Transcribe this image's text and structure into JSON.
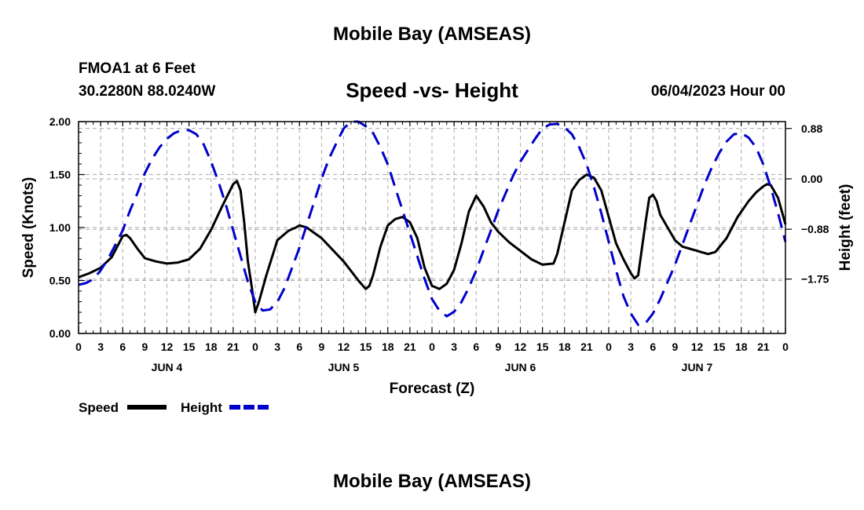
{
  "header": {
    "title": "Mobile Bay (AMSEAS)",
    "station": "FMOA1 at 6 Feet",
    "coordinates": "30.2280N  88.0240W",
    "subtitle": "Speed -vs- Height",
    "datetime": "06/04/2023 Hour 00"
  },
  "footer": {
    "title": "Mobile Bay (AMSEAS)"
  },
  "chart_data": {
    "type": "line",
    "title": "Speed -vs- Height",
    "xlabel": "Forecast (Z)",
    "ylabel": "Speed (Knots)",
    "y2label": "Height (feet)",
    "x_unit": "hours from 06/04/2023 00Z",
    "xlim": [
      0,
      96
    ],
    "ylim": [
      0,
      2.0
    ],
    "y2lim": [
      -2.7,
      1.0
    ],
    "grid": true,
    "x_ticks": [
      0,
      3,
      6,
      9,
      12,
      15,
      18,
      21,
      24,
      27,
      30,
      33,
      36,
      39,
      42,
      45,
      48,
      51,
      54,
      57,
      60,
      63,
      66,
      69,
      72,
      75,
      78,
      81,
      84,
      87,
      90,
      93,
      96
    ],
    "x_tick_labels": [
      "0",
      "3",
      "6",
      "9",
      "12",
      "15",
      "18",
      "21",
      "0",
      "3",
      "6",
      "9",
      "12",
      "15",
      "18",
      "21",
      "0",
      "3",
      "6",
      "9",
      "12",
      "15",
      "18",
      "21",
      "0",
      "3",
      "6",
      "9",
      "12",
      "15",
      "18",
      "21",
      "0"
    ],
    "day_labels": [
      {
        "label": "JUN 4",
        "center_hour": 12
      },
      {
        "label": "JUN 5",
        "center_hour": 36
      },
      {
        "label": "JUN 6",
        "center_hour": 60
      },
      {
        "label": "JUN 7",
        "center_hour": 84
      }
    ],
    "y_ticks": [
      0.0,
      0.5,
      1.0,
      1.5,
      2.0
    ],
    "y_tick_labels": [
      "0.00",
      "0.50",
      "1.00",
      "1.50",
      "2.00"
    ],
    "y2_ticks": [
      0.88,
      0.0,
      -0.88,
      -1.75
    ],
    "y2_tick_labels": [
      "0.88",
      "0.00",
      "−0.88",
      "−1.75"
    ],
    "series": [
      {
        "name": "Speed",
        "color": "#000000",
        "axis": "left",
        "style": "solid",
        "points": [
          [
            0,
            0.53
          ],
          [
            1.5,
            0.57
          ],
          [
            3,
            0.62
          ],
          [
            4.5,
            0.72
          ],
          [
            6,
            0.92
          ],
          [
            6.5,
            0.93
          ],
          [
            7,
            0.9
          ],
          [
            8,
            0.8
          ],
          [
            9,
            0.71
          ],
          [
            10.5,
            0.68
          ],
          [
            12,
            0.66
          ],
          [
            13.5,
            0.67
          ],
          [
            15,
            0.7
          ],
          [
            16.5,
            0.8
          ],
          [
            18,
            0.98
          ],
          [
            19.5,
            1.2
          ],
          [
            21,
            1.41
          ],
          [
            21.5,
            1.44
          ],
          [
            22,
            1.35
          ],
          [
            22.5,
            1.05
          ],
          [
            23,
            0.68
          ],
          [
            23.5,
            0.45
          ],
          [
            24,
            0.2
          ],
          [
            24.5,
            0.3
          ],
          [
            25.5,
            0.55
          ],
          [
            27,
            0.88
          ],
          [
            28.5,
            0.97
          ],
          [
            29.5,
            1.0
          ],
          [
            30,
            1.02
          ],
          [
            31,
            1.0
          ],
          [
            33,
            0.9
          ],
          [
            36,
            0.68
          ],
          [
            38,
            0.5
          ],
          [
            39,
            0.42
          ],
          [
            39.5,
            0.45
          ],
          [
            40,
            0.55
          ],
          [
            41,
            0.82
          ],
          [
            42,
            1.02
          ],
          [
            43,
            1.08
          ],
          [
            44,
            1.1
          ],
          [
            45,
            1.05
          ],
          [
            46,
            0.9
          ],
          [
            47,
            0.62
          ],
          [
            48,
            0.45
          ],
          [
            49,
            0.42
          ],
          [
            50,
            0.47
          ],
          [
            51,
            0.6
          ],
          [
            52,
            0.85
          ],
          [
            53,
            1.15
          ],
          [
            54,
            1.3
          ],
          [
            55,
            1.2
          ],
          [
            56,
            1.05
          ],
          [
            57,
            0.96
          ],
          [
            58.5,
            0.86
          ],
          [
            60,
            0.78
          ],
          [
            61.5,
            0.7
          ],
          [
            63,
            0.65
          ],
          [
            64.5,
            0.66
          ],
          [
            65,
            0.75
          ],
          [
            66,
            1.05
          ],
          [
            67,
            1.35
          ],
          [
            68,
            1.45
          ],
          [
            69,
            1.5
          ],
          [
            70,
            1.47
          ],
          [
            71,
            1.35
          ],
          [
            72,
            1.1
          ],
          [
            73,
            0.85
          ],
          [
            74,
            0.7
          ],
          [
            75,
            0.57
          ],
          [
            75.5,
            0.52
          ],
          [
            76,
            0.55
          ],
          [
            77,
            1.05
          ],
          [
            77.5,
            1.28
          ],
          [
            78,
            1.31
          ],
          [
            78.5,
            1.25
          ],
          [
            79,
            1.12
          ],
          [
            80,
            1.0
          ],
          [
            81,
            0.88
          ],
          [
            82,
            0.82
          ],
          [
            83,
            0.8
          ],
          [
            84,
            0.78
          ],
          [
            85.5,
            0.75
          ],
          [
            86.5,
            0.77
          ],
          [
            88,
            0.9
          ],
          [
            89.5,
            1.1
          ],
          [
            91,
            1.25
          ],
          [
            92,
            1.33
          ],
          [
            93,
            1.39
          ],
          [
            93.5,
            1.41
          ],
          [
            94,
            1.4
          ],
          [
            95,
            1.28
          ],
          [
            96,
            1.03
          ]
        ]
      },
      {
        "name": "Height",
        "color": "#0000cc",
        "axis": "right",
        "style": "dashed",
        "points": [
          [
            0,
            -1.85
          ],
          [
            1,
            -1.82
          ],
          [
            2,
            -1.75
          ],
          [
            3,
            -1.6
          ],
          [
            4,
            -1.4
          ],
          [
            5,
            -1.15
          ],
          [
            6,
            -0.9
          ],
          [
            7,
            -0.55
          ],
          [
            8,
            -0.25
          ],
          [
            9,
            0.1
          ],
          [
            10,
            0.35
          ],
          [
            11,
            0.55
          ],
          [
            12,
            0.7
          ],
          [
            13,
            0.8
          ],
          [
            14,
            0.85
          ],
          [
            15,
            0.85
          ],
          [
            16,
            0.78
          ],
          [
            17,
            0.6
          ],
          [
            18,
            0.3
          ],
          [
            19,
            -0.05
          ],
          [
            20,
            -0.45
          ],
          [
            21,
            -0.9
          ],
          [
            22,
            -1.35
          ],
          [
            23,
            -1.8
          ],
          [
            24,
            -2.15
          ],
          [
            25,
            -2.3
          ],
          [
            26,
            -2.28
          ],
          [
            27,
            -2.15
          ],
          [
            28,
            -1.9
          ],
          [
            29,
            -1.55
          ],
          [
            30,
            -1.2
          ],
          [
            31,
            -0.8
          ],
          [
            32,
            -0.4
          ],
          [
            33,
            0.0
          ],
          [
            34,
            0.35
          ],
          [
            35,
            0.62
          ],
          [
            36,
            0.88
          ],
          [
            37,
            1.0
          ],
          [
            38,
            1.0
          ],
          [
            39,
            0.92
          ],
          [
            40,
            0.8
          ],
          [
            41,
            0.55
          ],
          [
            42,
            0.25
          ],
          [
            43,
            -0.15
          ],
          [
            44,
            -0.55
          ],
          [
            45,
            -0.95
          ],
          [
            46,
            -1.35
          ],
          [
            47,
            -1.75
          ],
          [
            48,
            -2.1
          ],
          [
            49,
            -2.3
          ],
          [
            50,
            -2.4
          ],
          [
            51,
            -2.32
          ],
          [
            52,
            -2.15
          ],
          [
            53,
            -1.9
          ],
          [
            54,
            -1.6
          ],
          [
            55,
            -1.25
          ],
          [
            56,
            -0.9
          ],
          [
            57,
            -0.55
          ],
          [
            58,
            -0.25
          ],
          [
            59,
            0.05
          ],
          [
            60,
            0.3
          ],
          [
            61,
            0.5
          ],
          [
            62,
            0.7
          ],
          [
            63,
            0.88
          ],
          [
            64,
            0.95
          ],
          [
            65,
            0.96
          ],
          [
            66,
            0.9
          ],
          [
            67,
            0.78
          ],
          [
            68,
            0.55
          ],
          [
            69,
            0.25
          ],
          [
            70,
            -0.15
          ],
          [
            71,
            -0.6
          ],
          [
            72,
            -1.1
          ],
          [
            73,
            -1.6
          ],
          [
            74,
            -2.05
          ],
          [
            75,
            -2.35
          ],
          [
            76,
            -2.55
          ],
          [
            77,
            -2.52
          ],
          [
            78,
            -2.35
          ],
          [
            79,
            -2.1
          ],
          [
            80,
            -1.8
          ],
          [
            81,
            -1.5
          ],
          [
            82,
            -1.15
          ],
          [
            83,
            -0.8
          ],
          [
            84,
            -0.45
          ],
          [
            85,
            -0.1
          ],
          [
            86,
            0.2
          ],
          [
            87,
            0.45
          ],
          [
            88,
            0.65
          ],
          [
            89,
            0.78
          ],
          [
            90,
            0.8
          ],
          [
            91,
            0.72
          ],
          [
            92,
            0.55
          ],
          [
            93,
            0.25
          ],
          [
            94,
            -0.15
          ],
          [
            95,
            -0.6
          ],
          [
            96,
            -1.1
          ]
        ]
      }
    ],
    "legend": [
      {
        "label": "Speed",
        "color": "#000000",
        "style": "solid"
      },
      {
        "label": "Height",
        "color": "#0000cc",
        "style": "dashed"
      }
    ]
  }
}
